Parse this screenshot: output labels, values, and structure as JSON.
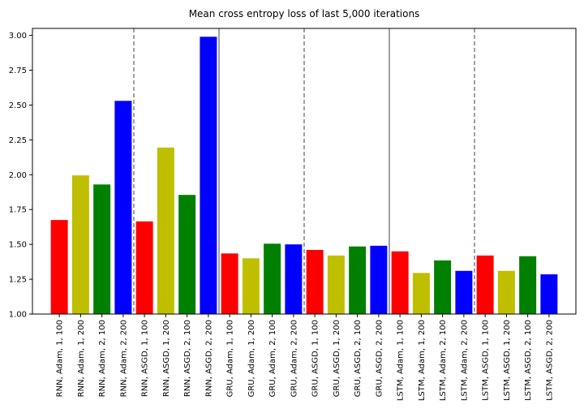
{
  "chart_data": {
    "type": "bar",
    "title": "Mean cross entropy loss of last 5,000 iterations",
    "xlabel": "",
    "ylabel": "",
    "ylim": [
      1.0,
      3.05
    ],
    "yticks": [
      "1.00",
      "1.25",
      "1.50",
      "1.75",
      "2.00",
      "2.25",
      "2.50",
      "2.75",
      "3.00"
    ],
    "grid": false,
    "legend": "none",
    "categories": [
      "RNN, Adam, 1, 100",
      "RNN, Adam, 1, 200",
      "RNN, Adam, 2, 100",
      "RNN, Adam, 2, 200",
      "RNN, ASGD, 1, 100",
      "RNN, ASGD, 1, 200",
      "RNN, ASGD, 2, 100",
      "RNN, ASGD, 2, 200",
      "GRU, Adam, 1, 100",
      "GRU, Adam, 1, 200",
      "GRU, Adam, 2, 100",
      "GRU, Adam, 2, 200",
      "GRU, ASGD, 1, 100",
      "GRU, ASGD, 1, 200",
      "GRU, ASGD, 2, 100",
      "GRU, ASGD, 2, 200",
      "LSTM, Adam, 1, 100",
      "LSTM, Adam, 1, 200",
      "LSTM, Adam, 2, 100",
      "LSTM, Adam, 2, 200",
      "LSTM, ASGD, 1, 100",
      "LSTM, ASGD, 1, 200",
      "LSTM, ASGD, 2, 100",
      "LSTM, ASGD, 2, 200"
    ],
    "values": [
      1.675,
      1.995,
      1.93,
      2.53,
      1.665,
      2.195,
      1.855,
      2.99,
      1.435,
      1.4,
      1.505,
      1.5,
      1.46,
      1.42,
      1.485,
      1.49,
      1.45,
      1.295,
      1.385,
      1.31,
      1.42,
      1.31,
      1.415,
      1.285
    ],
    "colors": [
      "#ff0000",
      "#bfbf00",
      "#008000",
      "#0000ff",
      "#ff0000",
      "#bfbf00",
      "#008000",
      "#0000ff",
      "#ff0000",
      "#bfbf00",
      "#008000",
      "#0000ff",
      "#ff0000",
      "#bfbf00",
      "#008000",
      "#0000ff",
      "#ff0000",
      "#bfbf00",
      "#008000",
      "#0000ff",
      "#ff0000",
      "#bfbf00",
      "#008000",
      "#0000ff"
    ],
    "separators": [
      {
        "after_index": 3,
        "style": "dashed"
      },
      {
        "after_index": 7,
        "style": "solid"
      },
      {
        "after_index": 11,
        "style": "dashed"
      },
      {
        "after_index": 15,
        "style": "solid"
      },
      {
        "after_index": 19,
        "style": "dashed"
      }
    ],
    "separator_color": "#808080"
  }
}
